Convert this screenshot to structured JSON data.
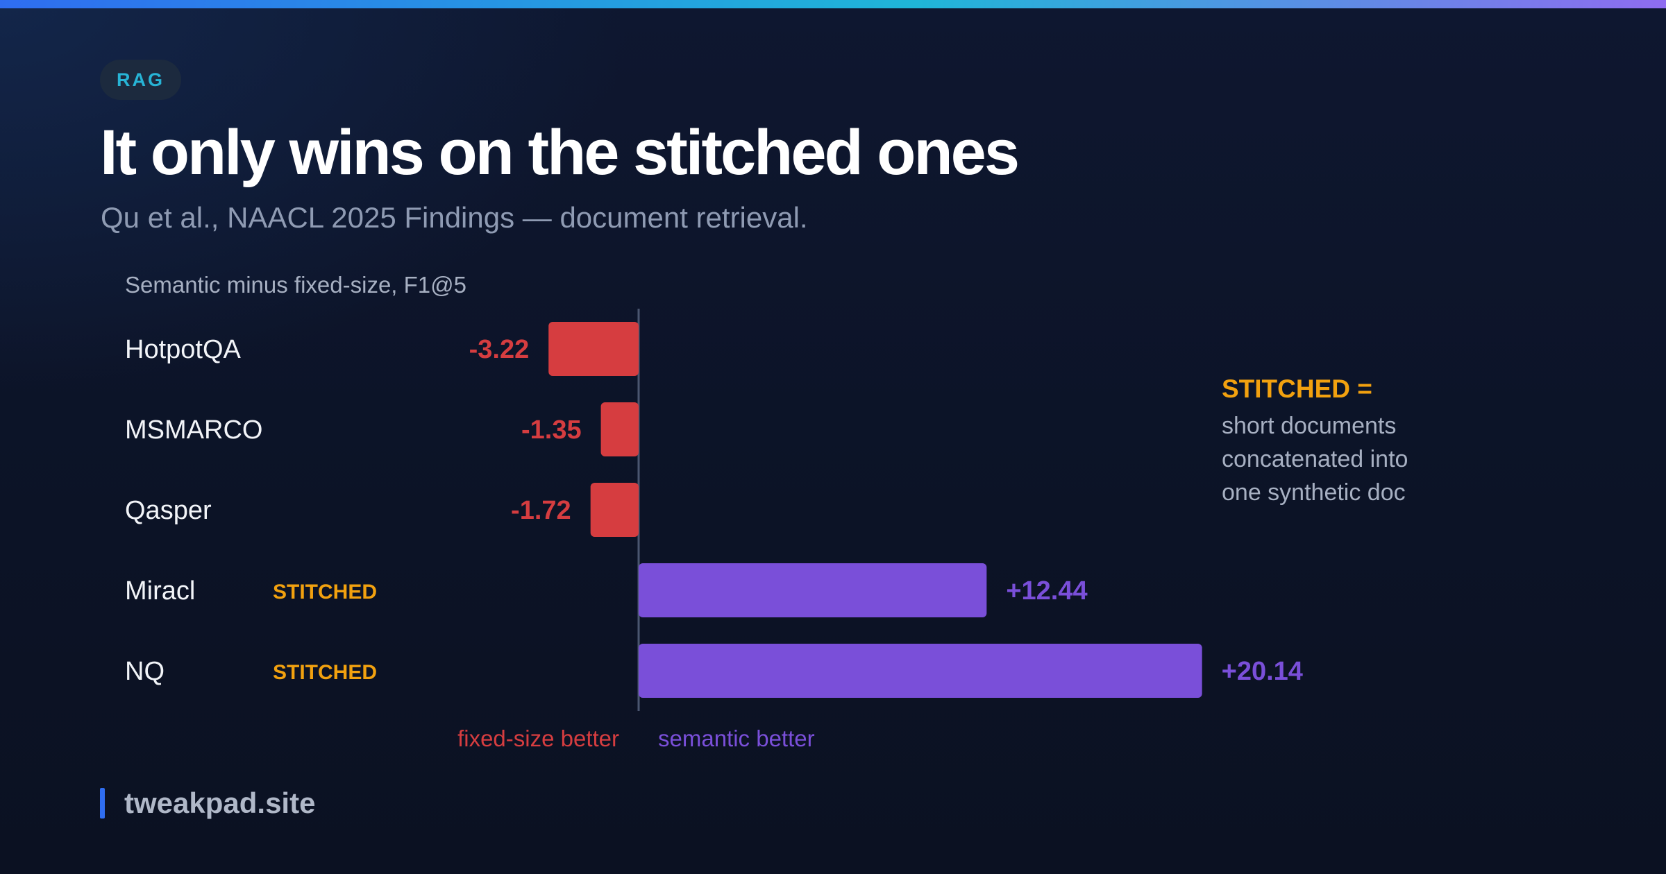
{
  "header": {
    "tag": "RAG",
    "title": "It only wins on the stitched ones",
    "subtitle": "Qu et al., NAACL 2025 Findings — document retrieval."
  },
  "chart_data": {
    "type": "bar",
    "orientation": "horizontal",
    "title": "Semantic minus fixed-size, F1@5",
    "categories": [
      "HotpotQA",
      "MSMARCO",
      "Qasper",
      "Miracl",
      "NQ"
    ],
    "values": [
      -3.22,
      -1.35,
      -1.72,
      12.44,
      20.14
    ],
    "value_labels": [
      "-3.22",
      "-1.35",
      "-1.72",
      "+12.44",
      "+20.14"
    ],
    "category_tags": [
      "",
      "",
      "",
      "STITCHED",
      "STITCHED"
    ],
    "negative_label": "fixed-size better",
    "positive_label": "semantic better",
    "colors": {
      "negative": "#d63d40",
      "positive": "#7a4fd9",
      "tag": "#f2a10f",
      "axis": "#4a5670"
    }
  },
  "note": {
    "title": "STITCHED =",
    "body_lines": [
      "short documents",
      "concatenated into",
      "one synthetic doc"
    ]
  },
  "footer": {
    "site": "tweakpad.site"
  }
}
